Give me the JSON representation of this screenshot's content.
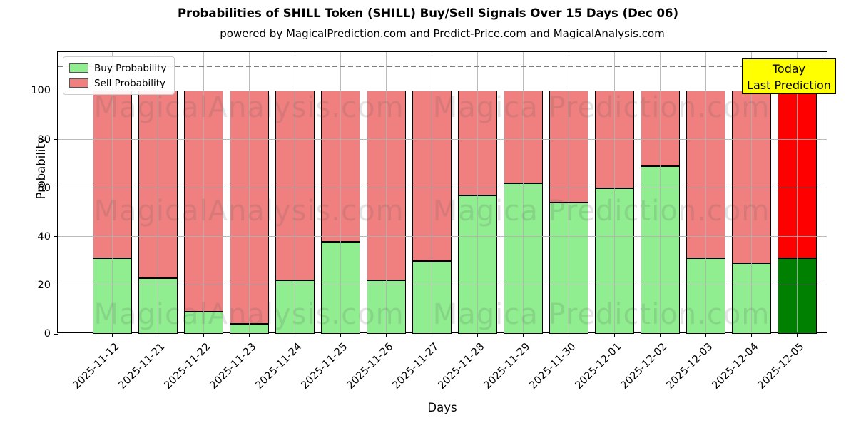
{
  "title": "Probabilities of SHILL Token (SHILL) Buy/Sell Signals Over 15 Days (Dec 06)",
  "subtitle": "powered by MagicalPrediction.com and Predict-Price.com and MagicalAnalysis.com",
  "annotation_box": {
    "line1": "Today",
    "line2": "Last Prediction",
    "bg_color": "#ffff00"
  },
  "watermarks": {
    "left_text": "MagicalAnalysis.com",
    "right_text": "Magica Prediction.com"
  },
  "colors": {
    "buy": "#90ee90",
    "sell": "#f08080",
    "buy_today": "#008000",
    "sell_today": "#ff0000",
    "grid": "#b0b0b0",
    "threshold_dash": "#7f7f7f",
    "bar_edge": "#000000"
  },
  "chart_data": {
    "type": "bar",
    "stacked": true,
    "title": "Probabilities of SHILL Token (SHILL) Buy/Sell Signals Over 15 Days (Dec 06)",
    "xlabel": "Days",
    "ylabel": "Probability",
    "ylim": [
      0,
      116
    ],
    "yticks": [
      0,
      20,
      40,
      60,
      80,
      100
    ],
    "threshold_line_y": 110,
    "grid": true,
    "legend_position": "upper left",
    "categories": [
      "2025-11-12",
      "2025-11-21",
      "2025-11-22",
      "2025-11-23",
      "2025-11-24",
      "2025-11-25",
      "2025-11-26",
      "2025-11-27",
      "2025-11-28",
      "2025-11-29",
      "2025-11-30",
      "2025-12-01",
      "2025-12-02",
      "2025-12-03",
      "2025-12-04",
      "2025-12-05"
    ],
    "series": [
      {
        "name": "Buy Probability",
        "color": "#90ee90",
        "today_color": "#008000",
        "values": [
          31,
          23,
          9,
          4,
          22,
          38,
          22,
          30,
          57,
          62,
          54,
          60,
          69,
          31,
          29,
          31
        ]
      },
      {
        "name": "Sell Probability",
        "color": "#f08080",
        "today_color": "#ff0000",
        "values": [
          69,
          77,
          91,
          96,
          78,
          62,
          78,
          70,
          43,
          38,
          46,
          40,
          31,
          69,
          71,
          69
        ]
      }
    ]
  }
}
